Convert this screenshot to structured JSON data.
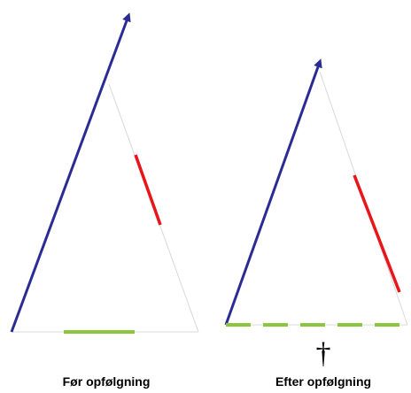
{
  "captions": {
    "before": "Før opfølgning",
    "after": "Efter opfølgning"
  },
  "symbols": {
    "dagger": "†"
  },
  "colors": {
    "arrow": "#2b2b94",
    "red_segment": "#e8161b",
    "green_segment": "#8cc63f",
    "triangle_edge": "#d8d8d8",
    "text": "#000000"
  }
}
